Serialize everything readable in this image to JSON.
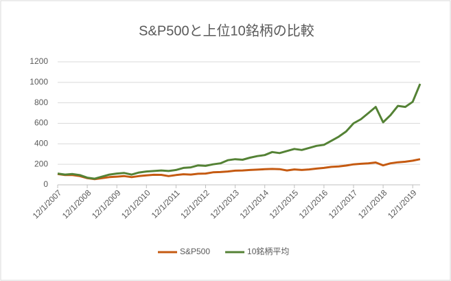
{
  "chart_data": {
    "type": "line",
    "title": "S&P500と上位10銘柄の比較",
    "x": [
      "12/1/2007",
      "3/1/2008",
      "6/1/2008",
      "9/1/2008",
      "12/1/2008",
      "3/1/2009",
      "6/1/2009",
      "9/1/2009",
      "12/1/2009",
      "3/1/2010",
      "6/1/2010",
      "9/1/2010",
      "12/1/2010",
      "3/1/2011",
      "6/1/2011",
      "9/1/2011",
      "12/1/2011",
      "3/1/2012",
      "6/1/2012",
      "9/1/2012",
      "12/1/2012",
      "3/1/2013",
      "6/1/2013",
      "9/1/2013",
      "12/1/2013",
      "3/1/2014",
      "6/1/2014",
      "9/1/2014",
      "12/1/2014",
      "3/1/2015",
      "6/1/2015",
      "9/1/2015",
      "12/1/2015",
      "3/1/2016",
      "6/1/2016",
      "9/1/2016",
      "12/1/2016",
      "3/1/2017",
      "6/1/2017",
      "9/1/2017",
      "12/1/2017",
      "3/1/2018",
      "6/1/2018",
      "9/1/2018",
      "12/1/2018",
      "3/1/2019",
      "6/1/2019",
      "9/1/2019",
      "12/1/2019",
      "3/1/2020"
    ],
    "series": [
      {
        "name": "S&P500",
        "color": "#c55a11",
        "values": [
          105,
          95,
          95,
          85,
          65,
          55,
          65,
          75,
          80,
          85,
          75,
          85,
          92,
          98,
          97,
          85,
          95,
          103,
          100,
          108,
          110,
          122,
          125,
          130,
          138,
          140,
          145,
          148,
          152,
          155,
          153,
          140,
          150,
          145,
          150,
          158,
          165,
          175,
          180,
          188,
          200,
          205,
          210,
          218,
          190,
          210,
          220,
          225,
          235,
          250
        ]
      },
      {
        "name": "10銘柄平均",
        "color": "#548235",
        "values": [
          110,
          100,
          105,
          95,
          70,
          60,
          80,
          100,
          110,
          115,
          100,
          120,
          130,
          135,
          140,
          135,
          145,
          165,
          170,
          190,
          185,
          200,
          210,
          240,
          250,
          245,
          265,
          280,
          290,
          320,
          310,
          330,
          350,
          340,
          360,
          380,
          390,
          430,
          470,
          520,
          600,
          640,
          700,
          760,
          610,
          680,
          770,
          760,
          810,
          985
        ]
      }
    ],
    "xlim": [
      "12/1/2007",
      "3/1/2020"
    ],
    "xticks": [
      "12/1/2007",
      "12/1/2008",
      "12/1/2009",
      "12/1/2010",
      "12/1/2011",
      "12/1/2012",
      "12/1/2013",
      "12/1/2014",
      "12/1/2015",
      "12/1/2016",
      "12/1/2017",
      "12/1/2018",
      "12/1/2019"
    ],
    "ylim": [
      0,
      1200
    ],
    "yticks": [
      0,
      200,
      400,
      600,
      800,
      1000,
      1200
    ],
    "grid": true,
    "legend": "bottom"
  }
}
